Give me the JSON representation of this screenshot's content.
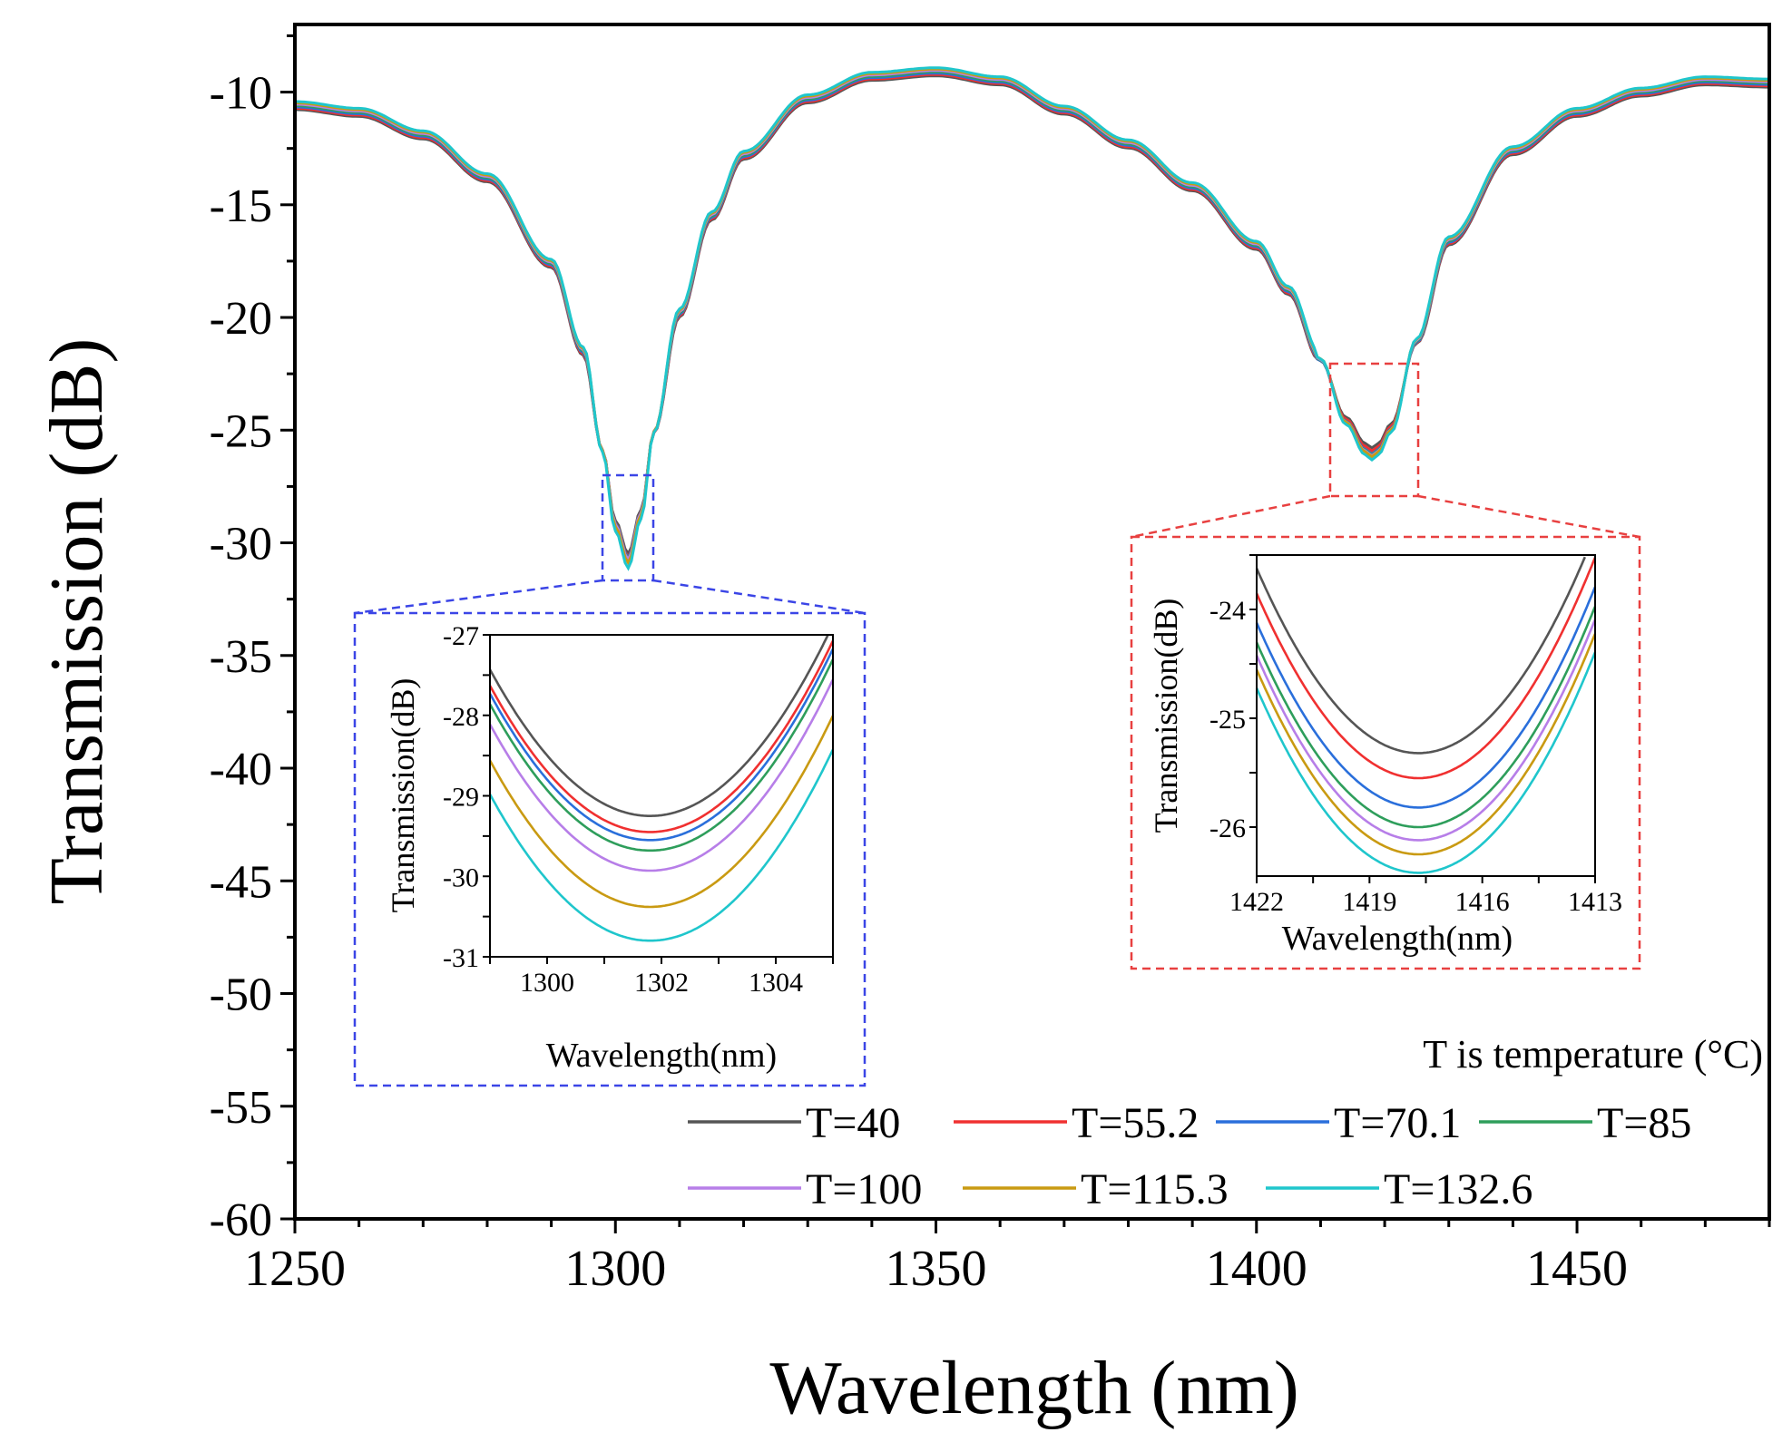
{
  "chart_data": [
    {
      "id": "main",
      "type": "line",
      "title": "",
      "xlabel": "Wavelength (nm)",
      "ylabel": "Transmission (dB)",
      "xlim": [
        1250,
        1480
      ],
      "ylim": [
        -60,
        -7
      ],
      "x_ticks": [
        1250,
        1300,
        1350,
        1400,
        1450
      ],
      "y_ticks": [
        -10,
        -15,
        -20,
        -25,
        -30,
        -35,
        -40,
        -45,
        -50,
        -55,
        -60
      ],
      "grid": false,
      "legend_title": "T is temperature (°C)",
      "legend_position": "bottom-right",
      "series": [
        {
          "name": "T=40",
          "color": "#555555",
          "dip1": -30.3,
          "dip2": -25.6
        },
        {
          "name": "T=55.2",
          "color": "#f03030",
          "dip1": -30.5,
          "dip2": -25.8
        },
        {
          "name": "T=70.1",
          "color": "#2a6fdb",
          "dip1": -30.6,
          "dip2": -26.0
        },
        {
          "name": "T=85",
          "color": "#2e9e5b",
          "dip1": -30.7,
          "dip2": -26.1
        },
        {
          "name": "T=100",
          "color": "#b77ee8",
          "dip1": -30.8,
          "dip2": -26.2
        },
        {
          "name": "T=115.3",
          "color": "#c99a12",
          "dip1": -31.0,
          "dip2": -26.3
        },
        {
          "name": "T=132.6",
          "color": "#1fc6cc",
          "dip1": -31.3,
          "dip2": -26.5
        }
      ],
      "shape": {
        "x": [
          1250,
          1260,
          1270,
          1280,
          1290,
          1295,
          1298,
          1300,
          1302,
          1304,
          1306,
          1310,
          1315,
          1320,
          1330,
          1340,
          1350,
          1360,
          1370,
          1380,
          1390,
          1400,
          1405,
          1410,
          1414,
          1417,
          1418,
          1419,
          1421,
          1425,
          1430,
          1440,
          1450,
          1460,
          1470,
          1480
        ],
        "y": [
          -10.6,
          -10.9,
          -11.9,
          -13.8,
          -17.6,
          -21.5,
          -25.8,
          -29.0,
          -30.5,
          -28.5,
          -25.0,
          -19.8,
          -15.5,
          -12.8,
          -10.3,
          -9.3,
          -9.1,
          -9.5,
          -10.8,
          -12.3,
          -14.2,
          -16.8,
          -18.8,
          -21.8,
          -24.4,
          -25.6,
          -25.8,
          -25.6,
          -24.7,
          -21.0,
          -16.6,
          -12.6,
          -10.9,
          -10.0,
          -9.5,
          -9.6
        ]
      }
    },
    {
      "id": "inset1",
      "type": "line",
      "xlabel": "Wavelength(nm)",
      "ylabel": "Transmission(dB)",
      "xlim": [
        1299,
        1305
      ],
      "ylim": [
        -31,
        -27
      ],
      "x_ticks": [
        1300,
        1302,
        1304
      ],
      "y_ticks": [
        -27,
        -28,
        -29,
        -30,
        -31
      ],
      "series": [
        {
          "name": "T=40",
          "color": "#555555",
          "min_x": 1301.8,
          "min_y": -29.25,
          "curvature": 0.232
        },
        {
          "name": "T=55.2",
          "color": "#f03030",
          "min_x": 1301.8,
          "min_y": -29.45,
          "curvature": 0.232
        },
        {
          "name": "T=70.1",
          "color": "#2a6fdb",
          "min_x": 1301.8,
          "min_y": -29.55,
          "curvature": 0.232
        },
        {
          "name": "T=85",
          "color": "#2e9e5b",
          "min_x": 1301.8,
          "min_y": -29.68,
          "curvature": 0.232
        },
        {
          "name": "T=100",
          "color": "#b77ee8",
          "min_x": 1301.8,
          "min_y": -29.93,
          "curvature": 0.232
        },
        {
          "name": "T=115.3",
          "color": "#c99a12",
          "min_x": 1301.8,
          "min_y": -30.38,
          "curvature": 0.232
        },
        {
          "name": "T=132.6",
          "color": "#1fc6cc",
          "min_x": 1301.8,
          "min_y": -30.8,
          "curvature": 0.232
        }
      ]
    },
    {
      "id": "inset2",
      "type": "line",
      "xlabel": "Wavelength(nm)",
      "ylabel": "Transmission(dB)",
      "xlim": [
        1422,
        1413
      ],
      "ylim": [
        -26.45,
        -23.5
      ],
      "x_ticks": [
        1422,
        1419,
        1416,
        1413
      ],
      "y_ticks": [
        -24,
        -25,
        -26
      ],
      "series": [
        {
          "name": "T=40",
          "color": "#555555",
          "min_x": 1417.7,
          "min_y": -25.32,
          "curvature": 0.0918
        },
        {
          "name": "T=55.2",
          "color": "#f03030",
          "min_x": 1417.7,
          "min_y": -25.55,
          "curvature": 0.0918
        },
        {
          "name": "T=70.1",
          "color": "#2a6fdb",
          "min_x": 1417.7,
          "min_y": -25.82,
          "curvature": 0.0918
        },
        {
          "name": "T=85",
          "color": "#2e9e5b",
          "min_x": 1417.7,
          "min_y": -26.0,
          "curvature": 0.0918
        },
        {
          "name": "T=100",
          "color": "#b77ee8",
          "min_x": 1417.7,
          "min_y": -26.12,
          "curvature": 0.0918
        },
        {
          "name": "T=115.3",
          "color": "#c99a12",
          "min_x": 1417.7,
          "min_y": -26.25,
          "curvature": 0.0918
        },
        {
          "name": "T=132.6",
          "color": "#1fc6cc",
          "min_x": 1417.7,
          "min_y": -26.42,
          "curvature": 0.0918
        }
      ]
    }
  ],
  "colors": {
    "zoom_box_1": "#3b45e6",
    "zoom_box_2": "#e84040",
    "axis": "#000000"
  }
}
